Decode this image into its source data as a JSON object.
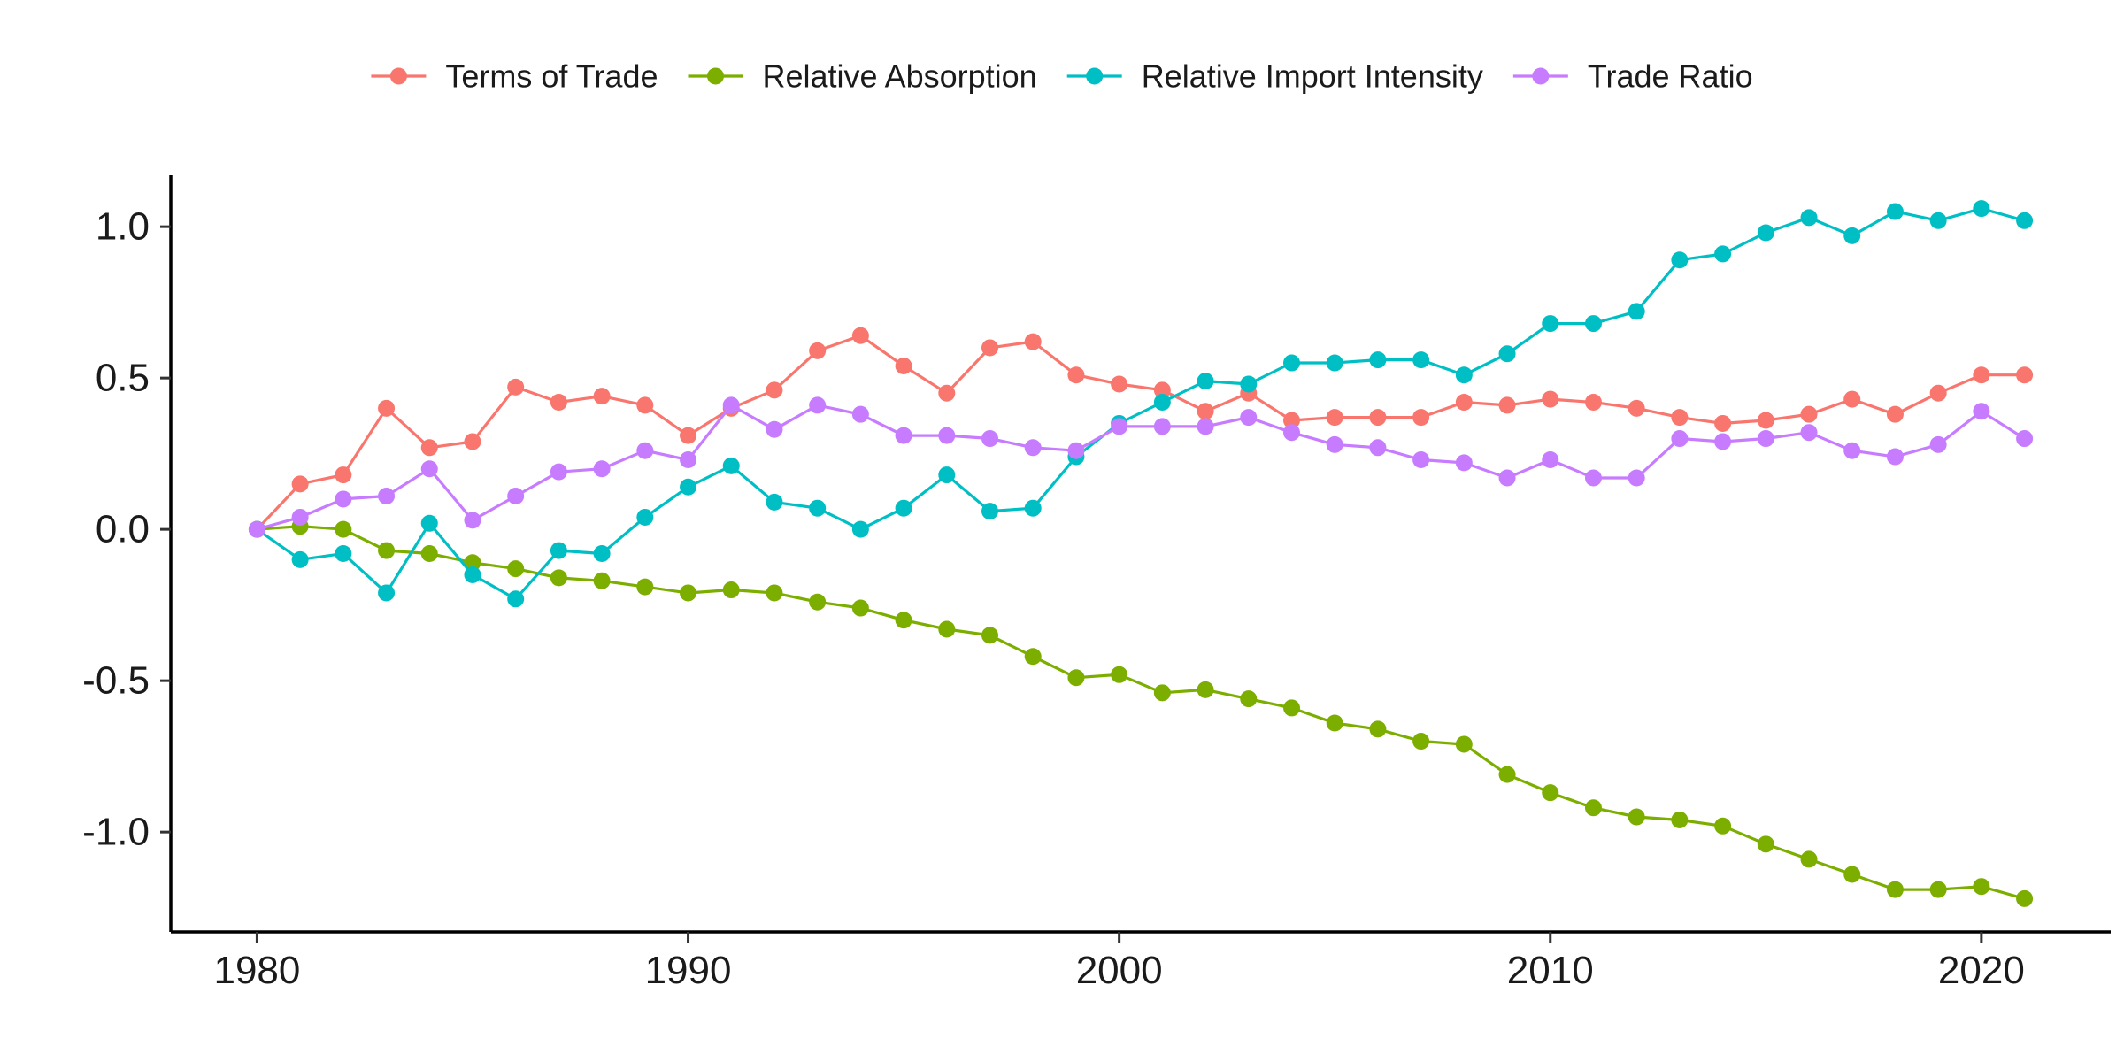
{
  "chart_data": {
    "type": "line",
    "title": "",
    "xlabel": "",
    "ylabel": "",
    "xlim": [
      1978,
      2023
    ],
    "ylim": [
      -1.33,
      1.17
    ],
    "x_ticks": [
      1980,
      1990,
      2000,
      2010,
      2020
    ],
    "y_ticks": [
      1.0,
      0.5,
      0.0,
      -0.5,
      -1.0
    ],
    "y_tick_labels": [
      "1.0",
      "0.5",
      "0.0",
      "-0.5",
      "-1.0"
    ],
    "grid": false,
    "legend_position": "top",
    "x": [
      1980,
      1981,
      1982,
      1983,
      1984,
      1985,
      1986,
      1987,
      1988,
      1989,
      1990,
      1991,
      1992,
      1993,
      1994,
      1995,
      1996,
      1997,
      1998,
      1999,
      2000,
      2001,
      2002,
      2003,
      2004,
      2005,
      2006,
      2007,
      2008,
      2009,
      2010,
      2011,
      2012,
      2013,
      2014,
      2015,
      2016,
      2017,
      2018,
      2019,
      2020,
      2021
    ],
    "series": [
      {
        "name": "Terms of Trade",
        "color": "#F8766D",
        "values": [
          0.0,
          0.15,
          0.18,
          0.4,
          0.27,
          0.29,
          0.47,
          0.42,
          0.44,
          0.41,
          0.31,
          0.4,
          0.46,
          0.59,
          0.64,
          0.54,
          0.45,
          0.6,
          0.62,
          0.51,
          0.48,
          0.46,
          0.39,
          0.45,
          0.36,
          0.37,
          0.37,
          0.37,
          0.42,
          0.41,
          0.43,
          0.42,
          0.4,
          0.37,
          0.35,
          0.36,
          0.38,
          0.43,
          0.38,
          0.45,
          0.51,
          0.51
        ]
      },
      {
        "name": "Relative Absorption",
        "color": "#7CAE00",
        "values": [
          0.0,
          0.01,
          0.0,
          -0.07,
          -0.08,
          -0.11,
          -0.13,
          -0.16,
          -0.17,
          -0.19,
          -0.21,
          -0.2,
          -0.21,
          -0.24,
          -0.26,
          -0.3,
          -0.33,
          -0.35,
          -0.42,
          -0.49,
          -0.48,
          -0.54,
          -0.53,
          -0.56,
          -0.59,
          -0.64,
          -0.66,
          -0.7,
          -0.71,
          -0.81,
          -0.87,
          -0.92,
          -0.95,
          -0.96,
          -0.98,
          -1.04,
          -1.09,
          -1.14,
          -1.19,
          -1.19,
          -1.18,
          -1.22
        ]
      },
      {
        "name": "Relative Import Intensity",
        "color": "#00BFC4",
        "values": [
          0.0,
          -0.1,
          -0.08,
          -0.21,
          0.02,
          -0.15,
          -0.23,
          -0.07,
          -0.08,
          0.04,
          0.14,
          0.21,
          0.09,
          0.07,
          0.0,
          0.07,
          0.18,
          0.06,
          0.07,
          0.24,
          0.35,
          0.42,
          0.49,
          0.48,
          0.55,
          0.55,
          0.56,
          0.56,
          0.51,
          0.58,
          0.68,
          0.68,
          0.72,
          0.89,
          0.91,
          0.98,
          1.03,
          0.97,
          1.05,
          1.02,
          1.06,
          1.02
        ]
      },
      {
        "name": "Trade Ratio",
        "color": "#C77CFF",
        "values": [
          0.0,
          0.04,
          0.1,
          0.11,
          0.2,
          0.03,
          0.11,
          0.19,
          0.2,
          0.26,
          0.23,
          0.41,
          0.33,
          0.41,
          0.38,
          0.31,
          0.31,
          0.3,
          0.27,
          0.26,
          0.34,
          0.34,
          0.34,
          0.37,
          0.32,
          0.28,
          0.27,
          0.23,
          0.22,
          0.17,
          0.23,
          0.17,
          0.17,
          0.3,
          0.29,
          0.3,
          0.32,
          0.26,
          0.24,
          0.28,
          0.39,
          0.3
        ]
      }
    ]
  }
}
